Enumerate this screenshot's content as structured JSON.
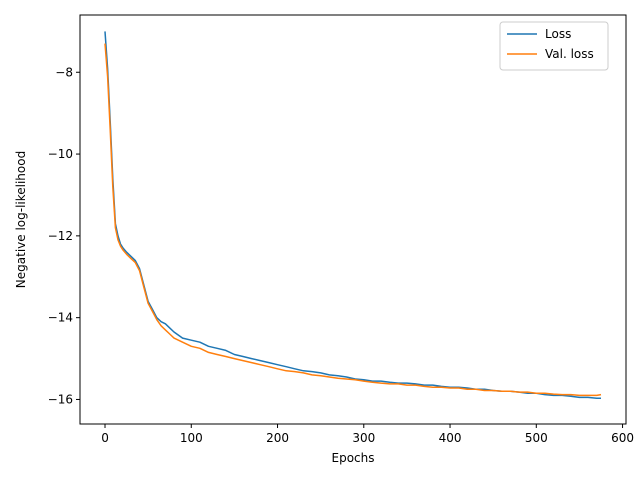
{
  "chart_data": {
    "type": "line",
    "title": "",
    "xlabel": "Epochs",
    "ylabel": "Negative log-likelihood",
    "xlim": [
      -29,
      604
    ],
    "ylim": [
      -16.6,
      -6.6
    ],
    "xticks": [
      0,
      100,
      200,
      300,
      400,
      500,
      600
    ],
    "yticks": [
      -8,
      -10,
      -12,
      -14,
      -16
    ],
    "grid": false,
    "legend_position": "top-right",
    "series": [
      {
        "name": "Loss",
        "color": "#1f77b4",
        "x": [
          0,
          3,
          6,
          9,
          12,
          15,
          18,
          21,
          25,
          30,
          35,
          40,
          45,
          50,
          55,
          60,
          65,
          70,
          75,
          80,
          90,
          100,
          110,
          120,
          130,
          140,
          150,
          160,
          170,
          180,
          190,
          200,
          210,
          220,
          230,
          240,
          250,
          260,
          270,
          280,
          290,
          300,
          310,
          320,
          330,
          340,
          350,
          360,
          370,
          380,
          390,
          400,
          410,
          420,
          430,
          440,
          450,
          460,
          470,
          480,
          490,
          500,
          510,
          520,
          530,
          540,
          550,
          560,
          570,
          575
        ],
        "y": [
          -7.0,
          -7.9,
          -9.2,
          -10.6,
          -11.7,
          -12.0,
          -12.2,
          -12.3,
          -12.4,
          -12.5,
          -12.6,
          -12.8,
          -13.2,
          -13.6,
          -13.8,
          -14.0,
          -14.1,
          -14.15,
          -14.25,
          -14.35,
          -14.5,
          -14.55,
          -14.6,
          -14.7,
          -14.75,
          -14.8,
          -14.9,
          -14.95,
          -15.0,
          -15.05,
          -15.1,
          -15.15,
          -15.2,
          -15.25,
          -15.3,
          -15.32,
          -15.35,
          -15.4,
          -15.42,
          -15.45,
          -15.5,
          -15.52,
          -15.55,
          -15.55,
          -15.58,
          -15.6,
          -15.6,
          -15.62,
          -15.65,
          -15.65,
          -15.68,
          -15.7,
          -15.7,
          -15.72,
          -15.75,
          -15.75,
          -15.78,
          -15.8,
          -15.8,
          -15.82,
          -15.85,
          -15.85,
          -15.88,
          -15.9,
          -15.9,
          -15.92,
          -15.95,
          -15.95,
          -15.97,
          -15.97
        ]
      },
      {
        "name": "Val. loss",
        "color": "#ff7f0e",
        "x": [
          0,
          3,
          6,
          9,
          12,
          15,
          18,
          21,
          25,
          30,
          35,
          40,
          45,
          50,
          55,
          60,
          65,
          70,
          75,
          80,
          90,
          100,
          110,
          120,
          130,
          140,
          150,
          160,
          170,
          180,
          190,
          200,
          210,
          220,
          230,
          240,
          250,
          260,
          270,
          280,
          290,
          300,
          310,
          320,
          330,
          340,
          350,
          360,
          370,
          380,
          390,
          400,
          410,
          420,
          430,
          440,
          450,
          460,
          470,
          480,
          490,
          500,
          510,
          520,
          530,
          540,
          550,
          560,
          570,
          575
        ],
        "y": [
          -7.3,
          -8.1,
          -9.4,
          -10.8,
          -11.8,
          -12.1,
          -12.25,
          -12.35,
          -12.45,
          -12.55,
          -12.65,
          -12.85,
          -13.25,
          -13.65,
          -13.85,
          -14.05,
          -14.2,
          -14.3,
          -14.4,
          -14.5,
          -14.6,
          -14.7,
          -14.75,
          -14.85,
          -14.9,
          -14.95,
          -15.0,
          -15.05,
          -15.1,
          -15.15,
          -15.2,
          -15.25,
          -15.3,
          -15.32,
          -15.35,
          -15.4,
          -15.42,
          -15.45,
          -15.48,
          -15.5,
          -15.52,
          -15.55,
          -15.58,
          -15.6,
          -15.62,
          -15.62,
          -15.65,
          -15.65,
          -15.68,
          -15.7,
          -15.7,
          -15.72,
          -15.72,
          -15.75,
          -15.75,
          -15.78,
          -15.78,
          -15.8,
          -15.8,
          -15.82,
          -15.82,
          -15.85,
          -15.85,
          -15.87,
          -15.88,
          -15.88,
          -15.9,
          -15.9,
          -15.9,
          -15.88
        ]
      }
    ]
  }
}
